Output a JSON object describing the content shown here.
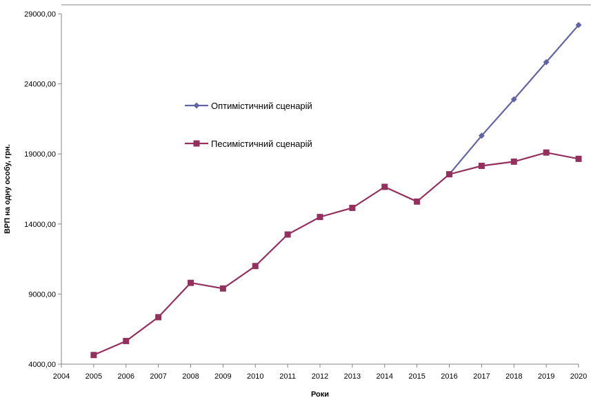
{
  "chart_data": {
    "type": "line",
    "title": "",
    "xlabel": "Роки",
    "ylabel": "ВРП на одну особу, грн.",
    "xlim": [
      2004,
      2020
    ],
    "ylim": [
      4000,
      29000
    ],
    "x_ticks": [
      "2004",
      "2005",
      "2006",
      "2007",
      "2008",
      "2009",
      "2010",
      "2011",
      "2012",
      "2013",
      "2014",
      "2015",
      "2016",
      "2017",
      "2018",
      "2019",
      "2020"
    ],
    "y_ticks": [
      "4000,00",
      "9000,00",
      "14000,00",
      "19000,00",
      "24000,00",
      "29000,00"
    ],
    "y_tick_values": [
      4000,
      9000,
      14000,
      19000,
      24000,
      29000
    ],
    "grid": false,
    "legend_position": "center-left",
    "series": [
      {
        "name": "Оптимістичний сценарій",
        "color": "#6262a6",
        "marker": "diamond",
        "x": [
          2016,
          2017,
          2018,
          2019,
          2020
        ],
        "values": [
          17550,
          20300,
          22900,
          25550,
          28200
        ]
      },
      {
        "name": "Песимістичний сценарій",
        "color": "#93305e",
        "marker": "square",
        "x": [
          2005,
          2006,
          2007,
          2008,
          2009,
          2010,
          2011,
          2012,
          2013,
          2014,
          2015,
          2016,
          2017,
          2018,
          2019,
          2020
        ],
        "values": [
          4650,
          5650,
          7350,
          9800,
          9400,
          11000,
          13250,
          14500,
          15150,
          16650,
          15600,
          17550,
          18150,
          18450,
          19100,
          18650
        ]
      }
    ]
  }
}
